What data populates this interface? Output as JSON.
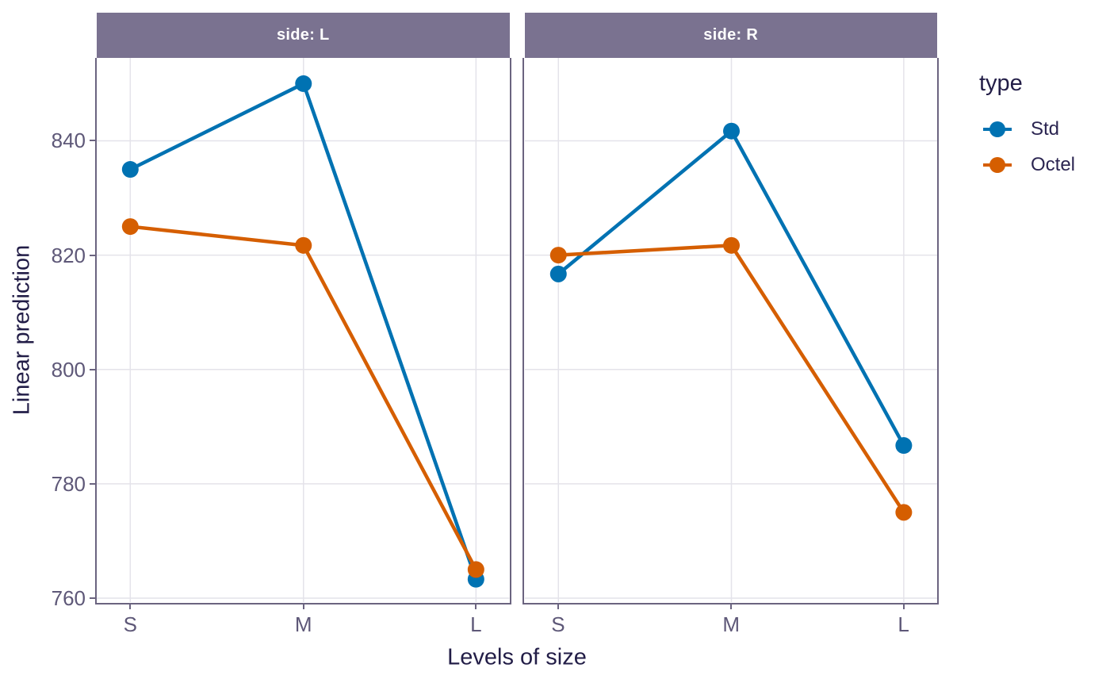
{
  "figure": {
    "x_axis_title": "Levels of size",
    "y_axis_title": "Linear prediction"
  },
  "legend": {
    "title": "type",
    "items": [
      {
        "label": "Std",
        "color": "#0072b2"
      },
      {
        "label": "Octel",
        "color": "#d55e00"
      }
    ]
  },
  "chart_data": {
    "type": "line",
    "categories": [
      "S",
      "M",
      "L"
    ],
    "xlabel": "Levels of size",
    "ylabel": "Linear prediction",
    "ylim": [
      759.3,
      854.5
    ],
    "yticks": [
      760,
      780,
      800,
      820,
      840
    ],
    "grid": true,
    "legend_position": "right",
    "legend_title": "type",
    "facet_variable": "side",
    "facets": [
      {
        "label": "side: L",
        "series": [
          {
            "name": "Std",
            "color": "#0072b2",
            "values": [
              835,
              850,
              763.3
            ]
          },
          {
            "name": "Octel",
            "color": "#d55e00",
            "values": [
              825,
              821.7,
              765
            ]
          }
        ]
      },
      {
        "label": "side: R",
        "series": [
          {
            "name": "Std",
            "color": "#0072b2",
            "values": [
              816.7,
              841.7,
              786.7
            ]
          },
          {
            "name": "Octel",
            "color": "#d55e00",
            "values": [
              820,
              821.7,
              775
            ]
          }
        ]
      }
    ]
  },
  "theme": {
    "strip_fill": "#7a7290",
    "strip_text": "#ffffff",
    "panel_border": "#6b6480",
    "grid_color": "#e4e3ea",
    "tick_color": "#6b6480",
    "title_color": "#221d47",
    "tick_label_color": "#5e5878",
    "legend_label_color": "#2b2551",
    "background": "#ffffff"
  }
}
